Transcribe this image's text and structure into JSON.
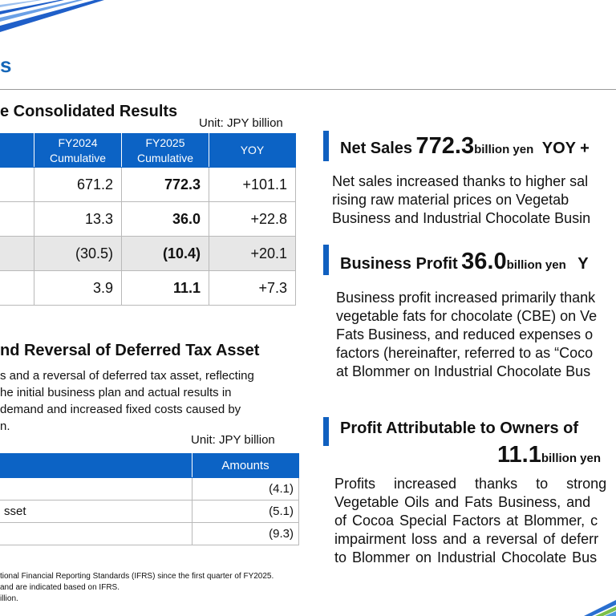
{
  "header": {
    "title": "s"
  },
  "left": {
    "results_heading": "e Consolidated Results",
    "results_unit": "Unit: JPY billion",
    "results_table": {
      "columns": [
        "",
        "FY2024\nCumulative",
        "FY2025\nCumulative",
        "YOY"
      ],
      "rows": [
        {
          "fy2024": "671.2",
          "fy2025": "772.3",
          "yoy": "+101.1"
        },
        {
          "fy2024": "13.3",
          "fy2025": "36.0",
          "yoy": "+22.8"
        },
        {
          "fy2024": "(30.5)",
          "fy2025": "(10.4)",
          "yoy": "+20.1"
        },
        {
          "fy2024": "3.9",
          "fy2025": "11.1",
          "yoy": "+7.3"
        }
      ]
    },
    "impairment_heading": "nd Reversal of Deferred Tax Asset",
    "impairment_text": [
      "s and a reversal of deferred tax asset, reflecting",
      "he initial business plan and actual results in",
      "demand and increased fixed costs caused by",
      "n."
    ],
    "impairment_unit": "Unit: JPY billion",
    "impairment_table": {
      "columns": [
        "",
        "Amounts"
      ],
      "rows": [
        {
          "label": "",
          "amount": "(4.1)"
        },
        {
          "label": "sset",
          "amount": "(5.1)"
        },
        {
          "label": "",
          "amount": "(9.3)"
        }
      ]
    },
    "footnotes": [
      "tional Financial Reporting Standards (IFRS) since the first quarter of FY2025.",
      "and are indicated based on IFRS.",
      "illion."
    ]
  },
  "right": {
    "net_sales": {
      "label": "Net Sales",
      "value": "772.3",
      "unit": "billion yen",
      "yoy": "YOY +",
      "text": [
        "Net sales increased thanks to higher sal",
        "rising raw material prices on Vegetab",
        "Business and Industrial Chocolate Busin"
      ]
    },
    "business_profit": {
      "label": "Business Profit",
      "value": "36.0",
      "unit": "billion yen",
      "yoy": "Y",
      "text": [
        "Business profit increased primarily thank",
        "vegetable fats for chocolate (CBE) on Ve",
        "Fats Business, and reduced expenses o",
        "factors (hereinafter, referred to as “Coco",
        "at Blommer on Industrial Chocolate Bus"
      ]
    },
    "profit_owners": {
      "label": "Profit Attributable to Owners of",
      "value": "11.1",
      "unit": "billion yen",
      "text": [
        "Profits increased thanks to strong",
        "Vegetable Oils and Fats Business, and",
        "of Cocoa Special Factors at Blommer, c",
        "impairment loss and a reversal of deferr",
        "to Blommer on Industrial Chocolate Bus"
      ]
    }
  },
  "colors": {
    "accent": "#1667b8",
    "table_header": "#0c63c5",
    "grey_row": "#e7e7e7"
  }
}
